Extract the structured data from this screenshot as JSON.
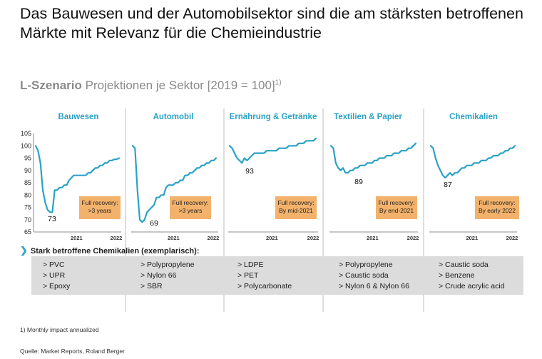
{
  "title": "Das Bauwesen und der Automobilsektor sind die am stärksten betroffenen Märkte mit Relevanz für die Chemieindustrie",
  "subtitle": {
    "strong": "L-Szenario",
    "rest": " Projektionen je Sektor [2019 = 100]",
    "sup": "1)"
  },
  "colors": {
    "line": "#2aa2c6",
    "header": "#2aa2c6",
    "box": "#f3b26b",
    "band": "#dcdcdc",
    "divider": "#bdbdbd"
  },
  "chart_data": [
    {
      "type": "line",
      "title": "Bauwesen",
      "ylim": [
        65,
        105
      ],
      "yticks": [
        "105",
        "100",
        "95",
        "90",
        "85",
        "80",
        "75",
        "70",
        "65"
      ],
      "xticks": [
        "2021",
        "2022"
      ],
      "x": [
        0,
        1,
        2,
        3,
        4,
        5,
        6,
        7,
        8,
        9,
        10,
        11,
        12,
        13,
        14,
        15,
        16,
        17,
        18,
        19,
        20,
        21,
        22,
        23,
        24,
        25,
        26,
        27,
        28,
        29,
        30,
        31,
        32,
        33,
        34,
        35
      ],
      "values": [
        100,
        98,
        93,
        82,
        77,
        74,
        73,
        73,
        82,
        82,
        83,
        83,
        84,
        84,
        86,
        87,
        88,
        88,
        88,
        88,
        88,
        88,
        89,
        89,
        90,
        91,
        91,
        92,
        92,
        93,
        93,
        94,
        94,
        94.5,
        94.5,
        95
      ],
      "trough_label": "73",
      "recovery": "Full recovery:\n>3 years"
    },
    {
      "type": "line",
      "title": "Automobil",
      "ylim": [
        65,
        105
      ],
      "xticks": [
        "2021",
        "2022"
      ],
      "x": [
        0,
        1,
        2,
        3,
        4,
        5,
        6,
        7,
        8,
        9,
        10,
        11,
        12,
        13,
        14,
        15,
        16,
        17,
        18,
        19,
        20,
        21,
        22,
        23,
        24,
        25,
        26,
        27,
        28,
        29,
        30,
        31,
        32,
        33,
        34,
        35
      ],
      "values": [
        100,
        99,
        82,
        70,
        69,
        70,
        73,
        74,
        75,
        76,
        79,
        79,
        80,
        80,
        83,
        84,
        84,
        84,
        85,
        85,
        86,
        86,
        88,
        88,
        89,
        89,
        90,
        91,
        91,
        92,
        92,
        93,
        93,
        94,
        94,
        95
      ],
      "trough_label": "69",
      "recovery": "Full recovery:\n>3 years"
    },
    {
      "type": "line",
      "title": "Ernährung & Getränke",
      "ylim": [
        65,
        105
      ],
      "xticks": [
        "2021",
        "2022"
      ],
      "x": [
        0,
        1,
        2,
        3,
        4,
        5,
        6,
        7,
        8,
        9,
        10,
        11,
        12,
        13,
        14,
        15,
        16,
        17,
        18,
        19,
        20,
        21,
        22,
        23,
        24,
        25,
        26,
        27,
        28,
        29,
        30,
        31,
        32,
        33,
        34,
        35
      ],
      "values": [
        100,
        99,
        97,
        95,
        94,
        93,
        95,
        94,
        95,
        96,
        97,
        97,
        97,
        97,
        97,
        98,
        98,
        98,
        98,
        98,
        99,
        99,
        99,
        99,
        100,
        100,
        100,
        100,
        101,
        101,
        101,
        102,
        102,
        102,
        102,
        103
      ],
      "trough_label": "93",
      "recovery": "Full recovery:\nBy mid-2021"
    },
    {
      "type": "line",
      "title": "Textilien & Papier",
      "ylim": [
        65,
        105
      ],
      "xticks": [
        "2021",
        "2022"
      ],
      "x": [
        0,
        1,
        2,
        3,
        4,
        5,
        6,
        7,
        8,
        9,
        10,
        11,
        12,
        13,
        14,
        15,
        16,
        17,
        18,
        19,
        20,
        21,
        22,
        23,
        24,
        25,
        26,
        27,
        28,
        29,
        30,
        31,
        32,
        33,
        34,
        35
      ],
      "values": [
        100,
        99,
        93,
        91,
        90,
        91,
        89,
        89,
        90,
        90,
        91,
        91,
        92,
        92,
        92,
        93,
        93,
        93,
        94,
        94,
        95,
        95,
        95,
        96,
        96,
        96,
        97,
        97,
        97,
        98,
        98,
        98,
        99,
        99,
        100,
        101
      ],
      "trough_label": "89",
      "recovery": "Full recovery:\nBy end-2021"
    },
    {
      "type": "line",
      "title": "Chemikalien",
      "ylim": [
        65,
        105
      ],
      "xticks": [
        "2021",
        "2022"
      ],
      "x": [
        0,
        1,
        2,
        3,
        4,
        5,
        6,
        7,
        8,
        9,
        10,
        11,
        12,
        13,
        14,
        15,
        16,
        17,
        18,
        19,
        20,
        21,
        22,
        23,
        24,
        25,
        26,
        27,
        28,
        29,
        30,
        31,
        32,
        33,
        34,
        35
      ],
      "values": [
        100,
        99,
        95,
        92,
        90,
        88,
        87,
        88,
        89,
        88,
        89,
        89,
        90,
        91,
        91,
        92,
        92,
        92,
        93,
        93,
        93,
        94,
        94,
        94,
        95,
        95,
        96,
        96,
        96,
        97,
        97,
        98,
        98,
        99,
        99,
        100
      ],
      "trough_label": "87",
      "recovery": "Full recovery:\nBy early 2022"
    }
  ],
  "row_header": "Stark betroffene Chemikalien (exemplarisch):",
  "chemicals": [
    [
      "> PVC",
      "> UPR",
      "> Epoxy"
    ],
    [
      "> Polypropylene",
      "> Nylon 66",
      "> SBR"
    ],
    [
      "> LDPE",
      "> PET",
      "> Polycarbonate"
    ],
    [
      "> Polypropylene",
      "> Caustic soda",
      "> Nylon 6 & Nylon 66"
    ],
    [
      "> Caustic soda",
      "> Benzene",
      "> Crude acrylic acid"
    ]
  ],
  "footnote": "1) Monthly impact annualized",
  "source": "Quelle: Market Reports, Roland Berger"
}
